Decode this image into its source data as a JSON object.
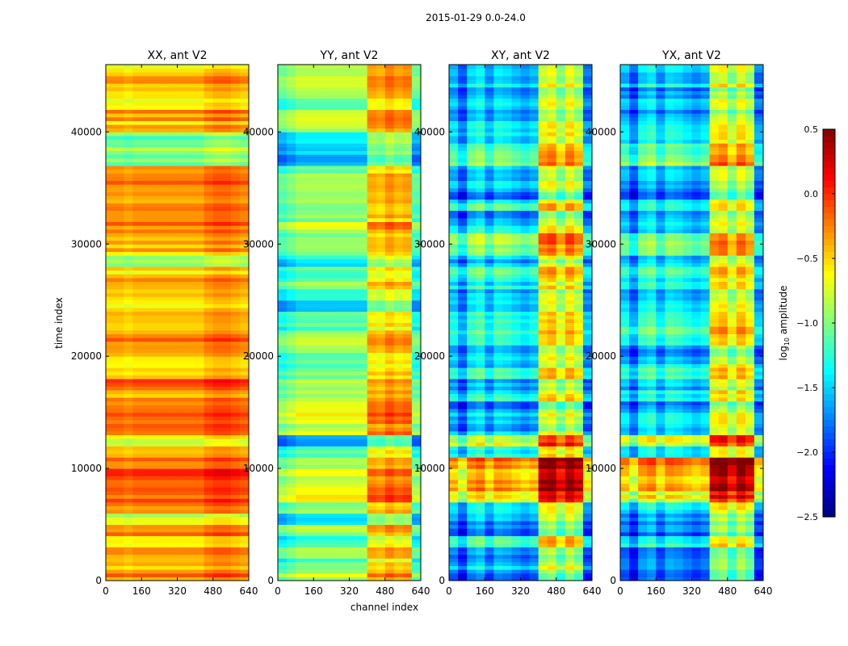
{
  "chart_data": {
    "type": "heatmap",
    "suptitle": "2015-01-29 0.0-24.0",
    "xlabel": "channel index",
    "ylabel": "time index",
    "xlim": [
      0,
      640
    ],
    "ylim": [
      0,
      46000
    ],
    "xticks": [
      "0",
      "160",
      "320",
      "480",
      "640"
    ],
    "yticks": [
      "0",
      "10000",
      "20000",
      "30000",
      "40000"
    ],
    "colorbar": {
      "label": "log10 amplitude",
      "label_main": "log",
      "label_sub": "10",
      "label_rest": " amplitude",
      "range": [
        -2.5,
        0.5
      ],
      "ticks": [
        "0.5",
        "0.0",
        "−0.5",
        "−1.0",
        "−1.5",
        "−2.0",
        "−2.5"
      ],
      "colormap": "jet"
    },
    "time_bin_size": 1000,
    "channel_bin_size": 40,
    "panels": [
      {
        "title": "XX, ant V2",
        "base": -0.15,
        "rows": [
          -0.1,
          -0.3,
          -0.2,
          -0.5,
          -0.1,
          -0.6,
          -0.2,
          0.0,
          -0.1,
          0.05,
          -0.1,
          -0.2,
          -0.6,
          -0.1,
          0.05,
          -0.05,
          -0.2,
          0.0,
          -0.3,
          -0.4,
          -0.2,
          -0.1,
          -0.4,
          -0.3,
          -0.5,
          -0.3,
          -0.2,
          -0.4,
          -0.7,
          -0.3,
          -0.2,
          -0.1,
          -0.3,
          -0.2,
          -0.05,
          0.0,
          -0.2,
          -0.9,
          -0.8,
          -0.9,
          -0.3,
          -0.2,
          -0.5,
          -0.3,
          -0.2,
          -0.4
        ],
        "cols": [
          0,
          0,
          -0.05,
          0,
          0,
          0,
          0,
          0,
          0,
          0,
          0,
          0.1,
          0.15,
          0.15,
          0.1,
          0.05
        ]
      },
      {
        "title": "YY, ant V2",
        "base": -0.5,
        "rows": [
          -0.3,
          -0.6,
          -0.5,
          -0.8,
          -0.4,
          -0.9,
          -0.5,
          -0.1,
          -0.2,
          -0.3,
          -0.5,
          -0.6,
          -1.2,
          -0.3,
          -0.1,
          -0.2,
          -0.4,
          -0.3,
          -0.5,
          -0.6,
          -0.5,
          -0.4,
          -0.6,
          -0.7,
          -0.9,
          -0.6,
          -0.5,
          -0.6,
          -0.9,
          -0.5,
          -0.4,
          -0.3,
          -0.5,
          -0.4,
          -0.3,
          -0.4,
          -0.5,
          -1.0,
          -0.9,
          -1.0,
          -0.4,
          -0.3,
          -0.6,
          -0.4,
          -0.3,
          -0.5
        ],
        "cols": [
          -0.2,
          -0.1,
          0,
          0,
          0,
          0,
          0,
          0,
          0,
          0,
          0.5,
          0.45,
          0.6,
          0.5,
          0.55,
          -0.2
        ]
      },
      {
        "title": "XY, ant V2",
        "base": -1.8,
        "rows": [
          -0.2,
          0.1,
          -0.1,
          0.4,
          -0.1,
          0.0,
          0.2,
          1.0,
          1.3,
          1.2,
          1.4,
          0.3,
          0.9,
          0.1,
          0.2,
          -0.1,
          0.3,
          0.1,
          0.4,
          0.2,
          0.0,
          0.3,
          0.5,
          0.4,
          0.2,
          0.1,
          0.3,
          0.5,
          0.1,
          0.6,
          0.7,
          0.2,
          0.0,
          0.4,
          -0.1,
          0.1,
          0.2,
          0.7,
          0.6,
          0.3,
          0.2,
          0.0,
          0.1,
          -0.1,
          0.2,
          0.1
        ],
        "cols": [
          0.1,
          -0.2,
          0.2,
          0.3,
          0.0,
          0.25,
          0.2,
          0.1,
          0.0,
          0.1,
          0.9,
          1.0,
          0.7,
          1.0,
          0.8,
          -0.1
        ]
      },
      {
        "title": "YX, ant V2",
        "base": -1.8,
        "rows": [
          -0.2,
          0.1,
          -0.1,
          0.4,
          -0.1,
          0.0,
          0.2,
          1.0,
          1.3,
          1.2,
          1.4,
          0.3,
          0.9,
          0.1,
          0.2,
          -0.1,
          0.3,
          0.1,
          0.4,
          0.2,
          0.0,
          0.3,
          0.5,
          0.4,
          0.2,
          0.1,
          0.3,
          0.5,
          0.1,
          0.6,
          0.7,
          0.2,
          0.0,
          0.4,
          -0.1,
          0.1,
          0.2,
          0.7,
          0.6,
          0.3,
          0.2,
          0.0,
          0.1,
          -0.1,
          0.2,
          0.1
        ],
        "cols": [
          0.1,
          -0.2,
          0.2,
          0.3,
          0.0,
          0.25,
          0.2,
          0.1,
          0.0,
          0.1,
          0.9,
          1.0,
          0.7,
          1.0,
          0.8,
          -0.1
        ]
      }
    ]
  }
}
